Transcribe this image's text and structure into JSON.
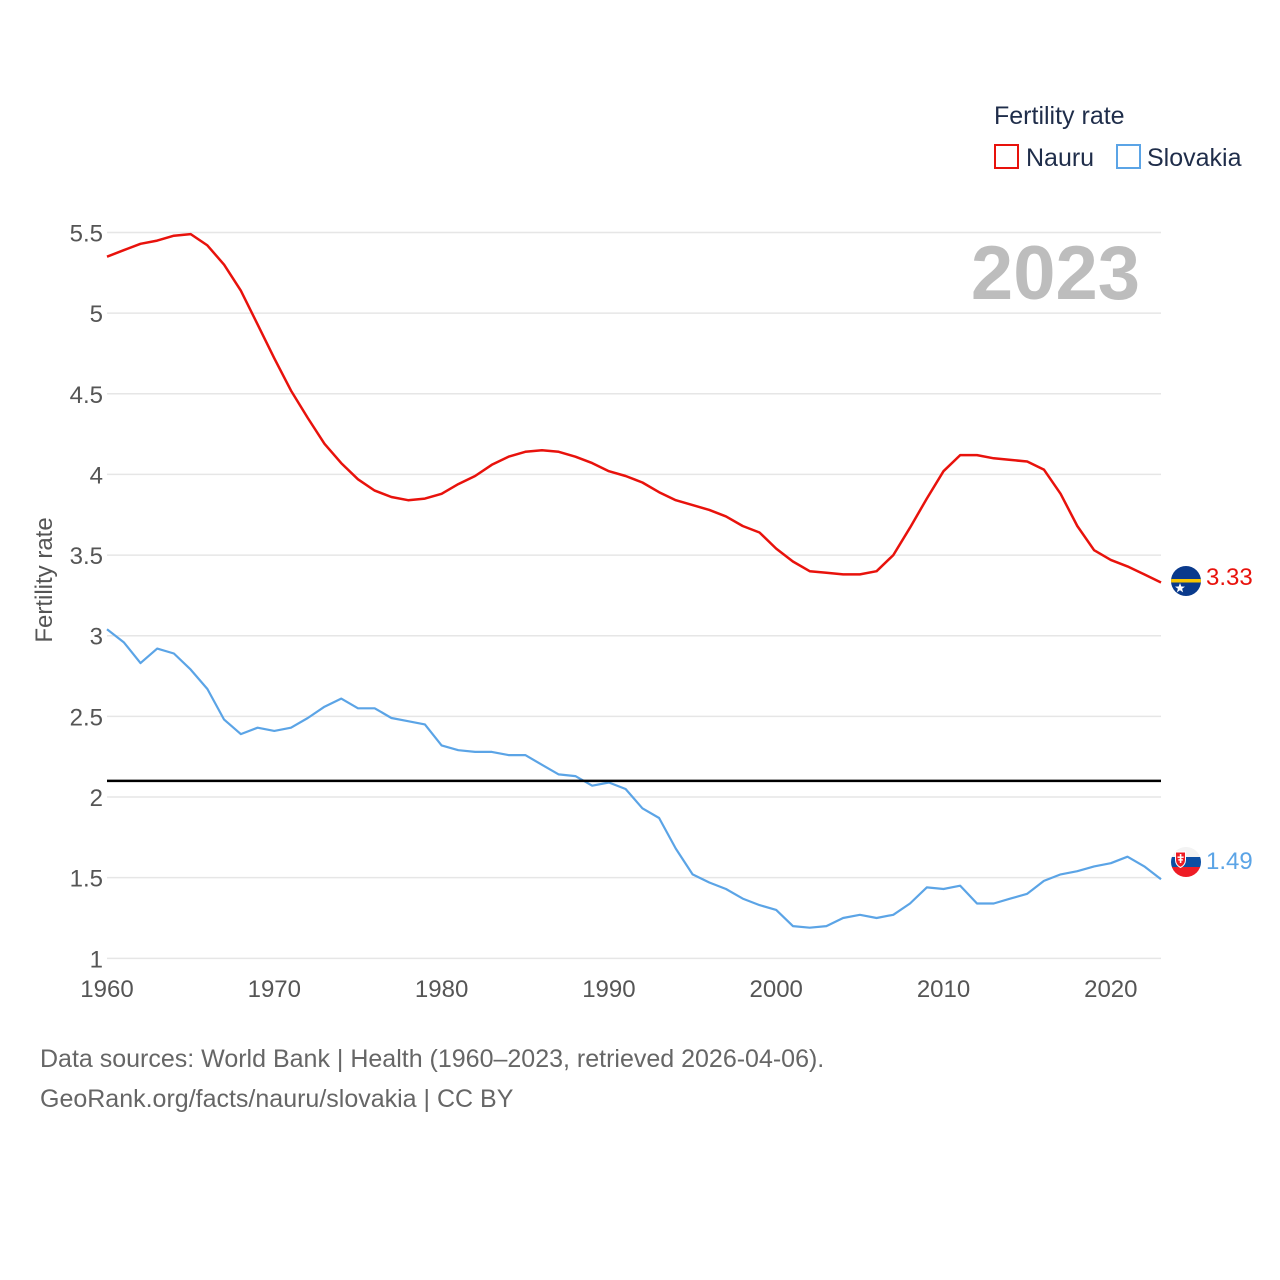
{
  "chart_data": {
    "type": "line",
    "year_label": "2023",
    "ylabel": "Fertility rate",
    "xlabel": "",
    "xlim": [
      1960,
      2023
    ],
    "ylim": [
      0.94,
      5.72
    ],
    "yticks": [
      {
        "value": 1,
        "label": "1"
      },
      {
        "value": 1.5,
        "label": "1.5"
      },
      {
        "value": 2,
        "label": "2"
      },
      {
        "value": 2.5,
        "label": "2.5"
      },
      {
        "value": 3,
        "label": "3"
      },
      {
        "value": 3.5,
        "label": "3.5"
      },
      {
        "value": 4,
        "label": "4"
      },
      {
        "value": 4.5,
        "label": "4.5"
      },
      {
        "value": 5,
        "label": "5"
      },
      {
        "value": 5.5,
        "label": "5.5"
      }
    ],
    "xticks": [
      {
        "value": 1960,
        "label": "1960"
      },
      {
        "value": 1970,
        "label": "1970"
      },
      {
        "value": 1980,
        "label": "1980"
      },
      {
        "value": 1990,
        "label": "1990"
      },
      {
        "value": 2000,
        "label": "2000"
      },
      {
        "value": 2010,
        "label": "2010"
      },
      {
        "value": 2020,
        "label": "2020"
      }
    ],
    "reference_line": {
      "value": 2.1,
      "color": "#000000"
    },
    "legend": {
      "title": "Fertility rate",
      "position": "top-right"
    },
    "x": [
      1960,
      1961,
      1962,
      1963,
      1964,
      1965,
      1966,
      1967,
      1968,
      1969,
      1970,
      1971,
      1972,
      1973,
      1974,
      1975,
      1976,
      1977,
      1978,
      1979,
      1980,
      1981,
      1982,
      1983,
      1984,
      1985,
      1986,
      1987,
      1988,
      1989,
      1990,
      1991,
      1992,
      1993,
      1994,
      1995,
      1996,
      1997,
      1998,
      1999,
      2000,
      2001,
      2002,
      2003,
      2004,
      2005,
      2006,
      2007,
      2008,
      2009,
      2010,
      2011,
      2012,
      2013,
      2014,
      2015,
      2016,
      2017,
      2018,
      2019,
      2020,
      2021,
      2022,
      2023
    ],
    "series": [
      {
        "name": "Nauru",
        "color": "#e8120c",
        "flag": "nauru-flag-icon",
        "end_label": "3.33",
        "values": [
          5.35,
          5.39,
          5.43,
          5.45,
          5.48,
          5.49,
          5.42,
          5.3,
          5.14,
          4.93,
          4.72,
          4.52,
          4.35,
          4.19,
          4.07,
          3.97,
          3.9,
          3.86,
          3.84,
          3.85,
          3.88,
          3.94,
          3.99,
          4.06,
          4.11,
          4.14,
          4.15,
          4.14,
          4.11,
          4.07,
          4.02,
          3.99,
          3.95,
          3.89,
          3.84,
          3.81,
          3.78,
          3.74,
          3.68,
          3.64,
          3.54,
          3.46,
          3.4,
          3.39,
          3.38,
          3.38,
          3.4,
          3.5,
          3.67,
          3.85,
          4.02,
          4.12,
          4.12,
          4.1,
          4.09,
          4.08,
          4.03,
          3.88,
          3.68,
          3.53,
          3.47,
          3.43,
          3.38,
          3.33
        ]
      },
      {
        "name": "Slovakia",
        "color": "#5ba4e6",
        "flag": "slovakia-flag-icon",
        "end_label": "1.49",
        "values": [
          3.04,
          2.96,
          2.83,
          2.92,
          2.89,
          2.79,
          2.67,
          2.48,
          2.39,
          2.43,
          2.41,
          2.43,
          2.49,
          2.56,
          2.61,
          2.55,
          2.55,
          2.49,
          2.47,
          2.45,
          2.32,
          2.29,
          2.28,
          2.28,
          2.26,
          2.26,
          2.2,
          2.14,
          2.13,
          2.07,
          2.09,
          2.05,
          1.93,
          1.87,
          1.68,
          1.52,
          1.47,
          1.43,
          1.37,
          1.33,
          1.3,
          1.2,
          1.19,
          1.2,
          1.25,
          1.27,
          1.25,
          1.27,
          1.34,
          1.44,
          1.43,
          1.45,
          1.34,
          1.34,
          1.37,
          1.4,
          1.48,
          1.52,
          1.54,
          1.57,
          1.59,
          1.63,
          1.57,
          1.49
        ]
      }
    ]
  },
  "footer": {
    "source_line": "Data sources: World Bank | Health (1960–2023, retrieved 2026-04-06).",
    "credit_line": "GeoRank.org/facts/nauru/slovakia | CC BY"
  }
}
